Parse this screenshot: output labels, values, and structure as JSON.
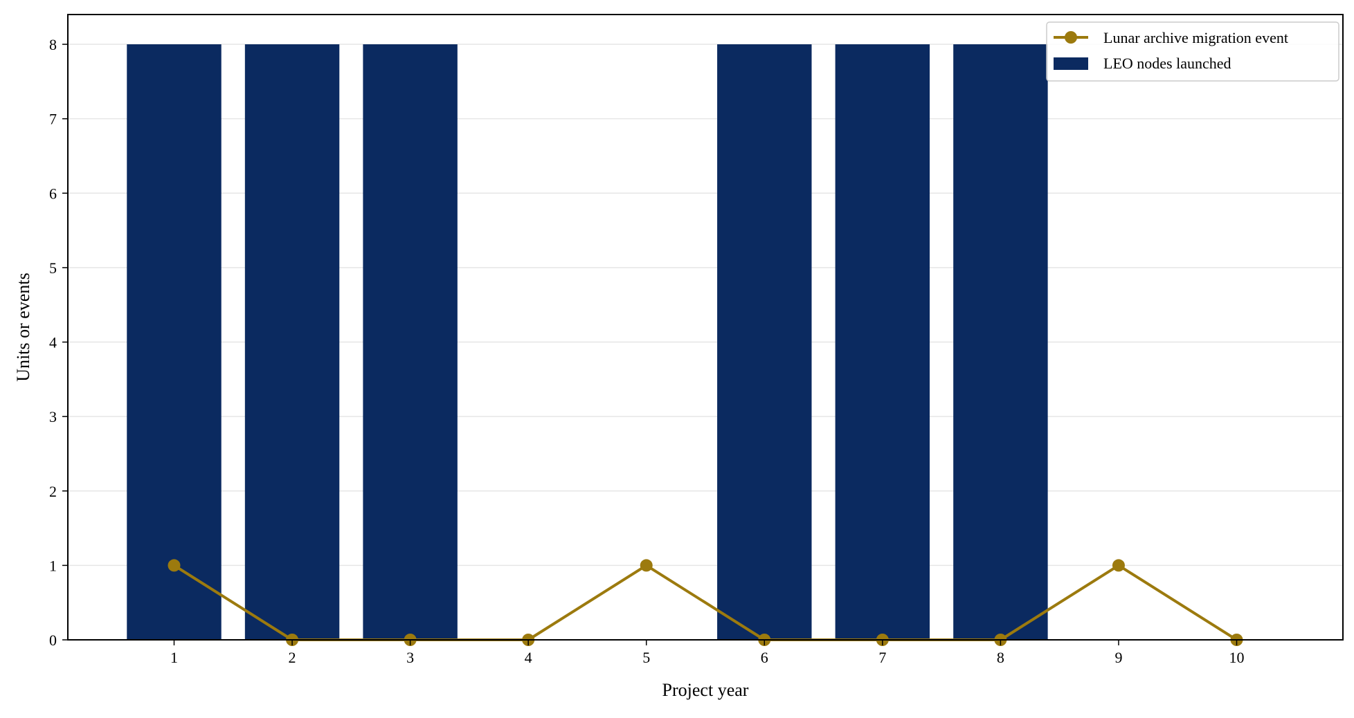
{
  "chart_data": {
    "type": "bar",
    "xlabel": "Project year",
    "ylabel": "Units or events",
    "x": [
      1,
      2,
      3,
      4,
      5,
      6,
      7,
      8,
      9,
      10
    ],
    "x_tick_labels": [
      "1",
      "2",
      "3",
      "4",
      "5",
      "6",
      "7",
      "8",
      "9",
      "10"
    ],
    "ylim": [
      0,
      8.4
    ],
    "y_ticks": [
      0,
      1,
      2,
      3,
      4,
      5,
      6,
      7,
      8
    ],
    "y_tick_labels": [
      "0",
      "1",
      "2",
      "3",
      "4",
      "5",
      "6",
      "7",
      "8"
    ],
    "grid": "horizontal",
    "legend_position": "top-right",
    "series": [
      {
        "name": "Lunar archive migration event",
        "kind": "line",
        "marker": "circle",
        "color": "#9C7A0E",
        "values": [
          1,
          0,
          0,
          0,
          1,
          0,
          0,
          0,
          1,
          0
        ]
      },
      {
        "name": "LEO nodes launched",
        "kind": "bar",
        "color": "#0B2A60",
        "values": [
          8,
          8,
          8,
          0,
          0,
          8,
          8,
          8,
          0,
          0
        ]
      }
    ]
  }
}
